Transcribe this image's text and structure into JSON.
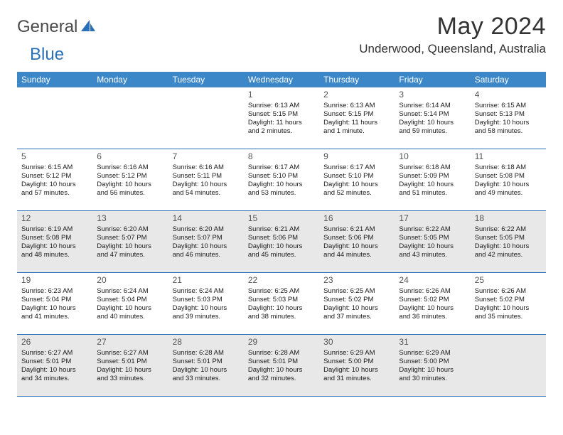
{
  "brand": {
    "word1": "General",
    "word2": "Blue"
  },
  "title": "May 2024",
  "location": "Underwood, Queensland, Australia",
  "day_names": [
    "Sunday",
    "Monday",
    "Tuesday",
    "Wednesday",
    "Thursday",
    "Friday",
    "Saturday"
  ],
  "colors": {
    "header_bg": "#3b87c8",
    "header_text": "#ffffff",
    "rule": "#2a70b8",
    "shaded": "#e8e8e8"
  },
  "weeks": [
    [
      {
        "day": "",
        "sunrise": "",
        "sunset": "",
        "daylight1": "",
        "daylight2": ""
      },
      {
        "day": "",
        "sunrise": "",
        "sunset": "",
        "daylight1": "",
        "daylight2": ""
      },
      {
        "day": "",
        "sunrise": "",
        "sunset": "",
        "daylight1": "",
        "daylight2": ""
      },
      {
        "day": "1",
        "sunrise": "Sunrise: 6:13 AM",
        "sunset": "Sunset: 5:15 PM",
        "daylight1": "Daylight: 11 hours",
        "daylight2": "and 2 minutes."
      },
      {
        "day": "2",
        "sunrise": "Sunrise: 6:13 AM",
        "sunset": "Sunset: 5:15 PM",
        "daylight1": "Daylight: 11 hours",
        "daylight2": "and 1 minute."
      },
      {
        "day": "3",
        "sunrise": "Sunrise: 6:14 AM",
        "sunset": "Sunset: 5:14 PM",
        "daylight1": "Daylight: 10 hours",
        "daylight2": "and 59 minutes."
      },
      {
        "day": "4",
        "sunrise": "Sunrise: 6:15 AM",
        "sunset": "Sunset: 5:13 PM",
        "daylight1": "Daylight: 10 hours",
        "daylight2": "and 58 minutes."
      }
    ],
    [
      {
        "day": "5",
        "sunrise": "Sunrise: 6:15 AM",
        "sunset": "Sunset: 5:12 PM",
        "daylight1": "Daylight: 10 hours",
        "daylight2": "and 57 minutes."
      },
      {
        "day": "6",
        "sunrise": "Sunrise: 6:16 AM",
        "sunset": "Sunset: 5:12 PM",
        "daylight1": "Daylight: 10 hours",
        "daylight2": "and 56 minutes."
      },
      {
        "day": "7",
        "sunrise": "Sunrise: 6:16 AM",
        "sunset": "Sunset: 5:11 PM",
        "daylight1": "Daylight: 10 hours",
        "daylight2": "and 54 minutes."
      },
      {
        "day": "8",
        "sunrise": "Sunrise: 6:17 AM",
        "sunset": "Sunset: 5:10 PM",
        "daylight1": "Daylight: 10 hours",
        "daylight2": "and 53 minutes."
      },
      {
        "day": "9",
        "sunrise": "Sunrise: 6:17 AM",
        "sunset": "Sunset: 5:10 PM",
        "daylight1": "Daylight: 10 hours",
        "daylight2": "and 52 minutes."
      },
      {
        "day": "10",
        "sunrise": "Sunrise: 6:18 AM",
        "sunset": "Sunset: 5:09 PM",
        "daylight1": "Daylight: 10 hours",
        "daylight2": "and 51 minutes."
      },
      {
        "day": "11",
        "sunrise": "Sunrise: 6:18 AM",
        "sunset": "Sunset: 5:08 PM",
        "daylight1": "Daylight: 10 hours",
        "daylight2": "and 49 minutes."
      }
    ],
    [
      {
        "day": "12",
        "sunrise": "Sunrise: 6:19 AM",
        "sunset": "Sunset: 5:08 PM",
        "daylight1": "Daylight: 10 hours",
        "daylight2": "and 48 minutes."
      },
      {
        "day": "13",
        "sunrise": "Sunrise: 6:20 AM",
        "sunset": "Sunset: 5:07 PM",
        "daylight1": "Daylight: 10 hours",
        "daylight2": "and 47 minutes."
      },
      {
        "day": "14",
        "sunrise": "Sunrise: 6:20 AM",
        "sunset": "Sunset: 5:07 PM",
        "daylight1": "Daylight: 10 hours",
        "daylight2": "and 46 minutes."
      },
      {
        "day": "15",
        "sunrise": "Sunrise: 6:21 AM",
        "sunset": "Sunset: 5:06 PM",
        "daylight1": "Daylight: 10 hours",
        "daylight2": "and 45 minutes."
      },
      {
        "day": "16",
        "sunrise": "Sunrise: 6:21 AM",
        "sunset": "Sunset: 5:06 PM",
        "daylight1": "Daylight: 10 hours",
        "daylight2": "and 44 minutes."
      },
      {
        "day": "17",
        "sunrise": "Sunrise: 6:22 AM",
        "sunset": "Sunset: 5:05 PM",
        "daylight1": "Daylight: 10 hours",
        "daylight2": "and 43 minutes."
      },
      {
        "day": "18",
        "sunrise": "Sunrise: 6:22 AM",
        "sunset": "Sunset: 5:05 PM",
        "daylight1": "Daylight: 10 hours",
        "daylight2": "and 42 minutes."
      }
    ],
    [
      {
        "day": "19",
        "sunrise": "Sunrise: 6:23 AM",
        "sunset": "Sunset: 5:04 PM",
        "daylight1": "Daylight: 10 hours",
        "daylight2": "and 41 minutes."
      },
      {
        "day": "20",
        "sunrise": "Sunrise: 6:24 AM",
        "sunset": "Sunset: 5:04 PM",
        "daylight1": "Daylight: 10 hours",
        "daylight2": "and 40 minutes."
      },
      {
        "day": "21",
        "sunrise": "Sunrise: 6:24 AM",
        "sunset": "Sunset: 5:03 PM",
        "daylight1": "Daylight: 10 hours",
        "daylight2": "and 39 minutes."
      },
      {
        "day": "22",
        "sunrise": "Sunrise: 6:25 AM",
        "sunset": "Sunset: 5:03 PM",
        "daylight1": "Daylight: 10 hours",
        "daylight2": "and 38 minutes."
      },
      {
        "day": "23",
        "sunrise": "Sunrise: 6:25 AM",
        "sunset": "Sunset: 5:02 PM",
        "daylight1": "Daylight: 10 hours",
        "daylight2": "and 37 minutes."
      },
      {
        "day": "24",
        "sunrise": "Sunrise: 6:26 AM",
        "sunset": "Sunset: 5:02 PM",
        "daylight1": "Daylight: 10 hours",
        "daylight2": "and 36 minutes."
      },
      {
        "day": "25",
        "sunrise": "Sunrise: 6:26 AM",
        "sunset": "Sunset: 5:02 PM",
        "daylight1": "Daylight: 10 hours",
        "daylight2": "and 35 minutes."
      }
    ],
    [
      {
        "day": "26",
        "sunrise": "Sunrise: 6:27 AM",
        "sunset": "Sunset: 5:01 PM",
        "daylight1": "Daylight: 10 hours",
        "daylight2": "and 34 minutes."
      },
      {
        "day": "27",
        "sunrise": "Sunrise: 6:27 AM",
        "sunset": "Sunset: 5:01 PM",
        "daylight1": "Daylight: 10 hours",
        "daylight2": "and 33 minutes."
      },
      {
        "day": "28",
        "sunrise": "Sunrise: 6:28 AM",
        "sunset": "Sunset: 5:01 PM",
        "daylight1": "Daylight: 10 hours",
        "daylight2": "and 33 minutes."
      },
      {
        "day": "29",
        "sunrise": "Sunrise: 6:28 AM",
        "sunset": "Sunset: 5:01 PM",
        "daylight1": "Daylight: 10 hours",
        "daylight2": "and 32 minutes."
      },
      {
        "day": "30",
        "sunrise": "Sunrise: 6:29 AM",
        "sunset": "Sunset: 5:00 PM",
        "daylight1": "Daylight: 10 hours",
        "daylight2": "and 31 minutes."
      },
      {
        "day": "31",
        "sunrise": "Sunrise: 6:29 AM",
        "sunset": "Sunset: 5:00 PM",
        "daylight1": "Daylight: 10 hours",
        "daylight2": "and 30 minutes."
      },
      {
        "day": "",
        "sunrise": "",
        "sunset": "",
        "daylight1": "",
        "daylight2": ""
      }
    ]
  ],
  "shaded_weeks": [
    2,
    4
  ]
}
